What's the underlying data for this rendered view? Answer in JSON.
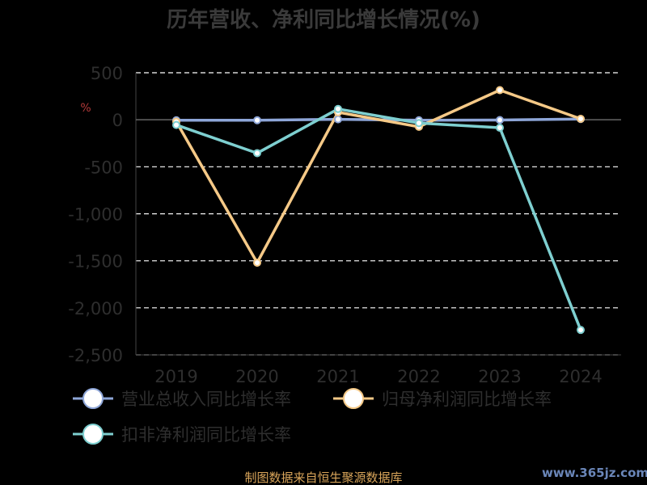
{
  "chart_data": {
    "type": "line",
    "title": "历年营收、净利同比增长情况(%)",
    "ylabel": "%",
    "categories": [
      "2019",
      "2020",
      "2021",
      "2022",
      "2023",
      "2024"
    ],
    "ylim": [
      -2500,
      500
    ],
    "yticks": [
      500,
      0,
      -500,
      -1000,
      -1500,
      -2000,
      -2500
    ],
    "ytick_labels": [
      "500",
      "0",
      "-500",
      "-1,000",
      "-1,500",
      "-2,000",
      "-2,500"
    ],
    "grid": true,
    "legend_position": "bottom",
    "series": [
      {
        "name": "营业总收入同比增长率",
        "color": "#8ea6d8",
        "values": [
          -5,
          -5,
          5,
          -5,
          -3,
          8
        ]
      },
      {
        "name": "归母净利润同比增长率",
        "color": "#f5c987",
        "values": [
          -20,
          -1520,
          80,
          -75,
          315,
          10
        ]
      },
      {
        "name": "扣非净利润同比增长率",
        "color": "#7ecfd0",
        "values": [
          -55,
          -355,
          115,
          -35,
          -85,
          -2235
        ]
      }
    ]
  },
  "footer": {
    "source": "制图数据来自恒生聚源数据库",
    "watermark": "www.365jz.com"
  }
}
